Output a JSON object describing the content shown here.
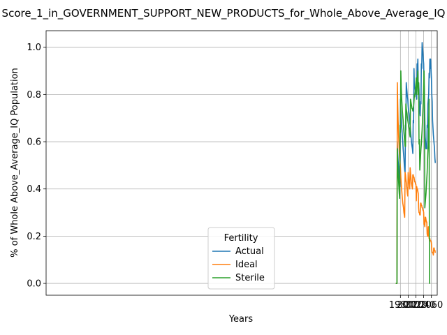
{
  "chart_data": {
    "type": "line",
    "title": "Score_1_in_GOVERNMENT_SUPPORT_NEW_PRODUCTS_for_Whole_Above_Average_IQ",
    "xlabel": "Years",
    "ylabel": "% of Whole Above_Average_IQ Population",
    "xlim": [
      1065,
      2075
    ],
    "ylim": [
      -0.05,
      1.07
    ],
    "xticks": [
      1980,
      2000,
      2020,
      2040,
      2060
    ],
    "yticks": [
      0.0,
      0.2,
      0.4,
      0.6,
      0.8,
      1.0
    ],
    "xtick_labels": [
      "1980",
      "2000",
      "2020",
      "2040",
      "2060"
    ],
    "ytick_labels": [
      "0.0",
      "0.2",
      "0.4",
      "0.6",
      "0.8",
      "1.0"
    ],
    "grid": true,
    "legend": {
      "title": "Fertility",
      "placement": "lower center"
    },
    "series": [
      {
        "name": "Actual",
        "color": "#1f77b4",
        "points": [
          [
            1968,
            0.0
          ],
          [
            1971,
            0.0
          ],
          [
            1972,
            0.6
          ],
          [
            1973,
            0.55
          ],
          [
            1974,
            0.52
          ],
          [
            1975,
            0.5
          ],
          [
            1976,
            0.48
          ],
          [
            1977,
            0.45
          ],
          [
            1978,
            0.43
          ],
          [
            1979,
            0.41
          ],
          [
            1980,
            0.78
          ],
          [
            1981,
            0.73
          ],
          [
            1982,
            0.7
          ],
          [
            1983,
            0.67
          ],
          [
            1984,
            0.65
          ],
          [
            1985,
            0.62
          ],
          [
            1986,
            0.6
          ],
          [
            1987,
            0.57
          ],
          [
            1988,
            0.55
          ],
          [
            1989,
            0.53
          ],
          [
            1990,
            0.5
          ],
          [
            1991,
            0.48
          ],
          [
            1992,
            0.47
          ],
          [
            1993,
            0.67
          ],
          [
            1994,
            0.65
          ],
          [
            1995,
            0.85
          ],
          [
            1996,
            0.83
          ],
          [
            1997,
            0.81
          ],
          [
            1998,
            0.79
          ],
          [
            1999,
            0.78
          ],
          [
            2000,
            0.75
          ],
          [
            2001,
            0.73
          ],
          [
            2002,
            0.72
          ],
          [
            2003,
            0.7
          ],
          [
            2004,
            0.68
          ],
          [
            2005,
            0.67
          ],
          [
            2006,
            0.65
          ],
          [
            2007,
            0.63
          ],
          [
            2008,
            0.61
          ],
          [
            2009,
            0.59
          ],
          [
            2010,
            0.58
          ],
          [
            2011,
            0.57
          ],
          [
            2012,
            0.55
          ],
          [
            2013,
            0.69
          ],
          [
            2014,
            0.68
          ],
          [
            2015,
            0.91
          ],
          [
            2016,
            0.83
          ],
          [
            2017,
            0.83
          ],
          [
            2018,
            0.82
          ],
          [
            2019,
            0.81
          ],
          [
            2020,
            0.8
          ],
          [
            2021,
            0.85
          ],
          [
            2022,
            0.78
          ],
          [
            2023,
            0.93
          ],
          [
            2024,
            0.91
          ],
          [
            2025,
            0.95
          ],
          [
            2026,
            0.84
          ],
          [
            2027,
            0.85
          ],
          [
            2028,
            0.82
          ],
          [
            2029,
            0.73
          ],
          [
            2030,
            0.73
          ],
          [
            2031,
            0.71
          ],
          [
            2032,
            0.77
          ],
          [
            2033,
            0.76
          ],
          [
            2034,
            0.93
          ],
          [
            2035,
            0.91
          ],
          [
            2036,
            1.02
          ],
          [
            2037,
            1.0
          ],
          [
            2038,
            0.98
          ],
          [
            2039,
            0.95
          ],
          [
            2040,
            0.93
          ],
          [
            2041,
            0.85
          ],
          [
            2042,
            0.78
          ],
          [
            2043,
            0.7
          ],
          [
            2044,
            0.62
          ],
          [
            2045,
            0.6
          ],
          [
            2046,
            0.57
          ],
          [
            2047,
            0.59
          ],
          [
            2048,
            0.57
          ],
          [
            2049,
            0.67
          ],
          [
            2050,
            0.66
          ],
          [
            2051,
            0.76
          ],
          [
            2052,
            0.78
          ],
          [
            2053,
            0.8
          ],
          [
            2054,
            0.89
          ],
          [
            2055,
            0.87
          ],
          [
            2056,
            0.95
          ],
          [
            2057,
            0.91
          ],
          [
            2058,
            0.95
          ],
          [
            2059,
            0.9
          ],
          [
            2060,
            0.87
          ],
          [
            2061,
            0.8
          ],
          [
            2062,
            0.77
          ],
          [
            2063,
            0.69
          ],
          [
            2064,
            0.66
          ],
          [
            2065,
            0.63
          ],
          [
            2066,
            0.61
          ],
          [
            2067,
            0.59
          ],
          [
            2068,
            0.57
          ],
          [
            2069,
            0.53
          ],
          [
            2070,
            0.51
          ]
        ]
      },
      {
        "name": "Ideal",
        "color": "#ff7f0e",
        "points": [
          [
            1968,
            0.0
          ],
          [
            1971,
            0.0
          ],
          [
            1972,
            0.85
          ],
          [
            1973,
            0.76
          ],
          [
            1974,
            0.69
          ],
          [
            1975,
            0.64
          ],
          [
            1976,
            0.6
          ],
          [
            1977,
            0.56
          ],
          [
            1978,
            0.53
          ],
          [
            1979,
            0.51
          ],
          [
            1980,
            0.49
          ],
          [
            1981,
            0.45
          ],
          [
            1982,
            0.42
          ],
          [
            1983,
            0.4
          ],
          [
            1984,
            0.38
          ],
          [
            1985,
            0.36
          ],
          [
            1986,
            0.34
          ],
          [
            1987,
            0.33
          ],
          [
            1988,
            0.32
          ],
          [
            1989,
            0.3
          ],
          [
            1990,
            0.29
          ],
          [
            1991,
            0.28
          ],
          [
            1992,
            0.47
          ],
          [
            1993,
            0.46
          ],
          [
            1994,
            0.44
          ],
          [
            1995,
            0.43
          ],
          [
            1996,
            0.41
          ],
          [
            1997,
            0.4
          ],
          [
            1998,
            0.38
          ],
          [
            1999,
            0.37
          ],
          [
            2000,
            0.47
          ],
          [
            2001,
            0.45
          ],
          [
            2002,
            0.43
          ],
          [
            2003,
            0.42
          ],
          [
            2004,
            0.4
          ],
          [
            2005,
            0.49
          ],
          [
            2006,
            0.47
          ],
          [
            2007,
            0.45
          ],
          [
            2008,
            0.43
          ],
          [
            2009,
            0.42
          ],
          [
            2010,
            0.41
          ],
          [
            2011,
            0.4
          ],
          [
            2012,
            0.46
          ],
          [
            2013,
            0.46
          ],
          [
            2014,
            0.45
          ],
          [
            2015,
            0.45
          ],
          [
            2016,
            0.44
          ],
          [
            2017,
            0.43
          ],
          [
            2018,
            0.43
          ],
          [
            2019,
            0.42
          ],
          [
            2020,
            0.42
          ],
          [
            2021,
            0.35
          ],
          [
            2022,
            0.41
          ],
          [
            2023,
            0.4
          ],
          [
            2024,
            0.4
          ],
          [
            2025,
            0.39
          ],
          [
            2026,
            0.38
          ],
          [
            2027,
            0.32
          ],
          [
            2028,
            0.3
          ],
          [
            2029,
            0.3
          ],
          [
            2030,
            0.29
          ],
          [
            2031,
            0.29
          ],
          [
            2032,
            0.34
          ],
          [
            2033,
            0.34
          ],
          [
            2034,
            0.33
          ],
          [
            2035,
            0.33
          ],
          [
            2036,
            0.32
          ],
          [
            2037,
            0.32
          ],
          [
            2038,
            0.31
          ],
          [
            2039,
            0.31
          ],
          [
            2040,
            0.3
          ],
          [
            2041,
            0.25
          ],
          [
            2042,
            0.25
          ],
          [
            2043,
            0.24
          ],
          [
            2044,
            0.28
          ],
          [
            2045,
            0.28
          ],
          [
            2046,
            0.27
          ],
          [
            2047,
            0.26
          ],
          [
            2048,
            0.26
          ],
          [
            2049,
            0.21
          ],
          [
            2050,
            0.2
          ],
          [
            2051,
            0.2
          ],
          [
            2052,
            0.24
          ],
          [
            2053,
            0.23
          ],
          [
            2054,
            0.19
          ],
          [
            2055,
            0.19
          ],
          [
            2056,
            0.19
          ],
          [
            2057,
            0.18
          ],
          [
            2058,
            0.18
          ],
          [
            2059,
            0.18
          ],
          [
            2060,
            0.17
          ],
          [
            2061,
            0.14
          ],
          [
            2062,
            0.13
          ],
          [
            2063,
            0.13
          ],
          [
            2064,
            0.13
          ],
          [
            2065,
            0.12
          ],
          [
            2066,
            0.15
          ],
          [
            2067,
            0.15
          ],
          [
            2068,
            0.14
          ],
          [
            2069,
            0.14
          ],
          [
            2070,
            0.13
          ]
        ]
      },
      {
        "name": "Sterile",
        "color": "#2ca02c",
        "points": [
          [
            1968,
            0.0
          ],
          [
            1971,
            0.0
          ],
          [
            1972,
            0.57
          ],
          [
            1973,
            0.51
          ],
          [
            1974,
            0.47
          ],
          [
            1975,
            0.44
          ],
          [
            1976,
            0.41
          ],
          [
            1977,
            0.38
          ],
          [
            1978,
            0.36
          ],
          [
            1979,
            0.67
          ],
          [
            1980,
            0.64
          ],
          [
            1981,
            0.9
          ],
          [
            1982,
            0.83
          ],
          [
            1983,
            0.79
          ],
          [
            1984,
            0.76
          ],
          [
            1985,
            0.73
          ],
          [
            1986,
            0.71
          ],
          [
            1987,
            0.69
          ],
          [
            1988,
            0.66
          ],
          [
            1989,
            0.64
          ],
          [
            1990,
            0.62
          ],
          [
            1991,
            0.6
          ],
          [
            1992,
            0.58
          ],
          [
            1993,
            0.58
          ],
          [
            1994,
            0.76
          ],
          [
            1995,
            0.74
          ],
          [
            1996,
            0.73
          ],
          [
            1997,
            0.72
          ],
          [
            1998,
            0.7
          ],
          [
            1999,
            0.69
          ],
          [
            2000,
            0.68
          ],
          [
            2001,
            0.67
          ],
          [
            2002,
            0.66
          ],
          [
            2003,
            0.65
          ],
          [
            2004,
            0.63
          ],
          [
            2005,
            0.62
          ],
          [
            2006,
            0.78
          ],
          [
            2007,
            0.77
          ],
          [
            2008,
            0.76
          ],
          [
            2009,
            0.75
          ],
          [
            2010,
            0.74
          ],
          [
            2011,
            0.74
          ],
          [
            2012,
            0.73
          ],
          [
            2013,
            0.74
          ],
          [
            2014,
            0.75
          ],
          [
            2015,
            0.77
          ],
          [
            2016,
            0.8
          ],
          [
            2017,
            0.79
          ],
          [
            2018,
            0.81
          ],
          [
            2019,
            0.83
          ],
          [
            2020,
            0.85
          ],
          [
            2021,
            0.87
          ],
          [
            2022,
            0.8
          ],
          [
            2023,
            0.84
          ],
          [
            2024,
            0.87
          ],
          [
            2025,
            0.9
          ],
          [
            2026,
            0.8
          ],
          [
            2027,
            0.85
          ],
          [
            2028,
            0.59
          ],
          [
            2029,
            0.61
          ],
          [
            2030,
            0.48
          ],
          [
            2031,
            0.51
          ],
          [
            2032,
            0.54
          ],
          [
            2033,
            0.57
          ],
          [
            2034,
            0.59
          ],
          [
            2035,
            0.62
          ],
          [
            2036,
            0.65
          ],
          [
            2037,
            0.69
          ],
          [
            2038,
            0.73
          ],
          [
            2039,
            0.77
          ],
          [
            2040,
            0.83
          ],
          [
            2041,
            0.9
          ],
          [
            2042,
            0.8
          ],
          [
            2043,
            0.32
          ],
          [
            2044,
            0.34
          ],
          [
            2045,
            0.36
          ],
          [
            2046,
            0.38
          ],
          [
            2047,
            0.41
          ],
          [
            2048,
            0.44
          ],
          [
            2049,
            0.47
          ],
          [
            2050,
            0.52
          ],
          [
            2051,
            0.56
          ],
          [
            2052,
            0.59
          ],
          [
            2053,
            0.69
          ],
          [
            2054,
            0.78
          ],
          [
            2055,
            0.0
          ],
          [
            2056,
            0.0
          ]
        ]
      }
    ]
  }
}
